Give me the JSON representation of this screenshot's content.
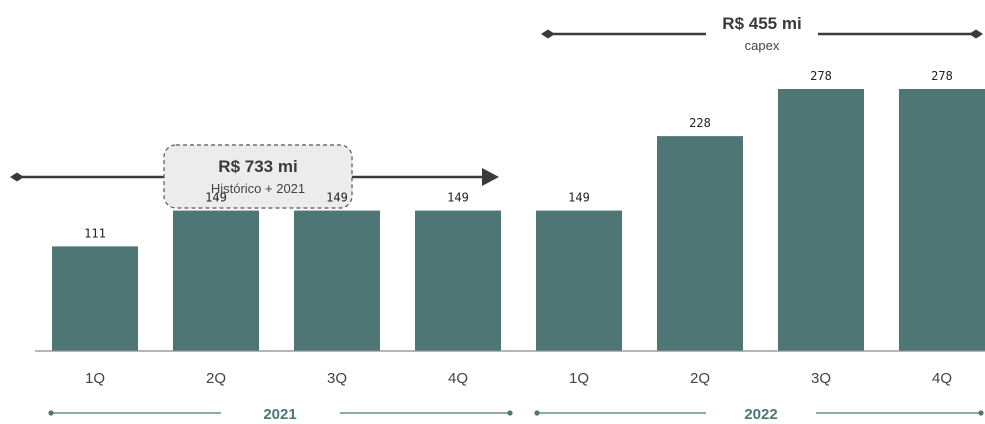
{
  "chart_data": {
    "type": "bar",
    "categories": [
      "1Q",
      "2Q",
      "3Q",
      "4Q",
      "1Q",
      "2Q",
      "3Q",
      "4Q"
    ],
    "values": [
      111,
      149,
      149,
      149,
      149,
      228,
      278,
      278
    ],
    "ylim": [
      0,
      278
    ],
    "grid": false,
    "bar_color": "#4e7674",
    "year_groups": [
      {
        "label": "2021",
        "color": "#4e7674"
      },
      {
        "label": "2022",
        "color": "#4e7674"
      }
    ],
    "annotations": {
      "historic": {
        "value": "R$ 733 mi",
        "label": "Histórico + 2021"
      },
      "capex": {
        "value": "R$ 455 mi",
        "label": "capex"
      }
    }
  }
}
